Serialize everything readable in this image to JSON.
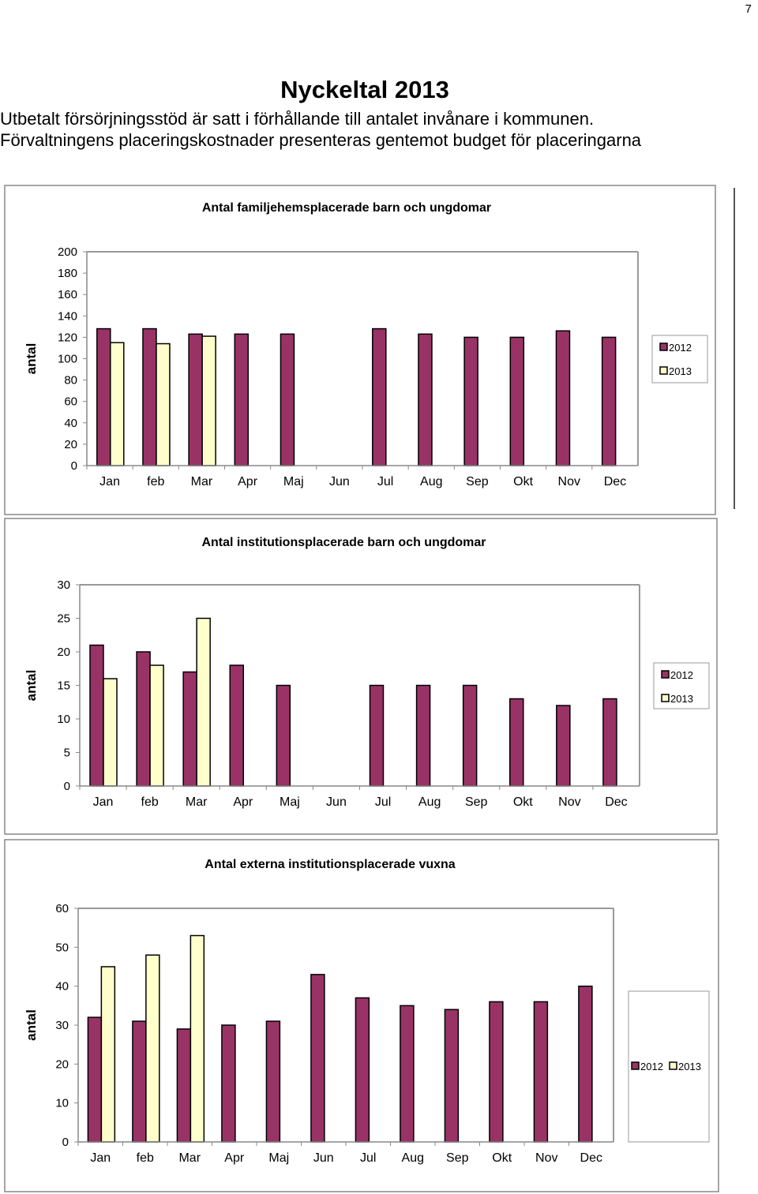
{
  "page_number": "7",
  "header": {
    "title": "Nyckeltal 2013",
    "lines": [
      "Utbetalt försörjningsstöd är satt i förhållande till antalet invånare i kommunen.",
      "Förvaltningens placeringskostnader presenteras gentemot budget för placeringarna"
    ]
  },
  "chart_data": [
    {
      "type": "bar",
      "title": "Antal familjehemsplacerade barn och ungdomar",
      "y_label": "antal",
      "categories": [
        "Jan",
        "feb",
        "Mar",
        "Apr",
        "Maj",
        "Jun",
        "Jul",
        "Aug",
        "Sep",
        "Okt",
        "Nov",
        "Dec"
      ],
      "series": [
        {
          "name": "2012",
          "color": "#993366",
          "values": [
            128,
            128,
            123,
            123,
            123,
            null,
            128,
            123,
            120,
            120,
            126,
            120
          ]
        },
        {
          "name": "2013",
          "color": "#ffffcc",
          "values": [
            115,
            114,
            121,
            null,
            null,
            null,
            null,
            null,
            null,
            null,
            null,
            null
          ]
        }
      ],
      "ylim": [
        0,
        200
      ],
      "yticks": [
        0,
        20,
        40,
        60,
        80,
        100,
        120,
        140,
        160,
        180,
        200
      ],
      "legend": "right",
      "legend_layout": "vertical"
    },
    {
      "type": "bar",
      "title": "Antal institutionsplacerade barn och ungdomar",
      "y_label": "antal",
      "categories": [
        "Jan",
        "feb",
        "Mar",
        "Apr",
        "Maj",
        "Jun",
        "Jul",
        "Aug",
        "Sep",
        "Okt",
        "Nov",
        "Dec"
      ],
      "series": [
        {
          "name": "2012",
          "color": "#993366",
          "values": [
            21,
            20,
            17,
            18,
            15,
            null,
            15,
            15,
            15,
            13,
            12,
            13
          ]
        },
        {
          "name": "2013",
          "color": "#ffffcc",
          "values": [
            16,
            18,
            25,
            null,
            null,
            null,
            null,
            null,
            null,
            null,
            null,
            null
          ]
        }
      ],
      "ylim": [
        0,
        30
      ],
      "yticks": [
        0,
        5,
        10,
        15,
        20,
        25,
        30
      ],
      "legend": "right",
      "legend_layout": "vertical"
    },
    {
      "type": "bar",
      "title": "Antal externa institutionsplacerade vuxna",
      "y_label": "antal",
      "categories": [
        "Jan",
        "feb",
        "Mar",
        "Apr",
        "Maj",
        "Jun",
        "Jul",
        "Aug",
        "Sep",
        "Okt",
        "Nov",
        "Dec"
      ],
      "series": [
        {
          "name": "2012",
          "color": "#993366",
          "values": [
            32,
            31,
            29,
            30,
            31,
            43,
            37,
            35,
            34,
            36,
            36,
            40
          ]
        },
        {
          "name": "2013",
          "color": "#ffffcc",
          "values": [
            45,
            48,
            53,
            null,
            null,
            null,
            null,
            null,
            null,
            null,
            null,
            null
          ]
        }
      ],
      "ylim": [
        0,
        60
      ],
      "yticks": [
        0,
        10,
        20,
        30,
        40,
        50,
        60
      ],
      "legend": "right",
      "legend_layout": "horizontal"
    }
  ]
}
